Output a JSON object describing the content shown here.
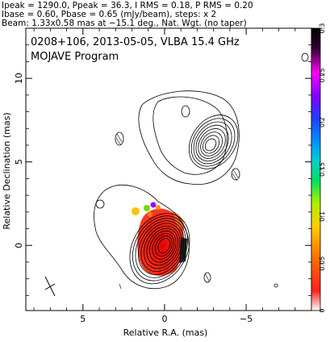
{
  "header": {
    "line1": "Ipeak = 1290.0, Ppeak = 36.3, I RMS = 0.18, P RMS = 0.20",
    "line2": "Ibase = 0.60, Pbase = 0.65 (mJy/beam), steps: x 2",
    "line3": "Beam: 1.33x0.58 mas at −15.1 deg., Nat. Wgt. (no taper)"
  },
  "chart_data": {
    "type": "contour-image",
    "title": "0208+106, 2013-05-05, VLBA 15.4 GHz",
    "subtitle": "MOJAVE Program",
    "xlabel": "Relative R.A. (mas)",
    "ylabel": "Relative Declination (mas)",
    "xlim": [
      8.5,
      -9.0
    ],
    "ylim": [
      -3.9,
      13.0
    ],
    "xticks": [
      5,
      0,
      -5
    ],
    "xtick_labels": [
      "5",
      "0",
      "−5"
    ],
    "yticks": [
      0,
      5,
      10
    ],
    "ytick_labels": [
      "0",
      "5",
      "10"
    ],
    "grid": false,
    "colorbar": {
      "min": 0,
      "max": 0.3,
      "ticks": [
        0,
        0.05,
        0.1,
        0.15,
        0.2,
        0.25,
        0.3
      ],
      "tick_labels": [
        "0",
        "0.05",
        "0.1",
        "0.15",
        "0.2",
        "0.25",
        "0.3"
      ]
    },
    "core": {
      "x": 0.0,
      "y": 0.0,
      "contour_levels": 11
    },
    "jet_component": {
      "x": -2.8,
      "y": 6.0,
      "contour_levels": 8
    },
    "beam": {
      "major_mas": 1.33,
      "minor_mas": 0.58,
      "pa_deg": -15.1,
      "x": 6.8,
      "y": -2.7
    }
  }
}
